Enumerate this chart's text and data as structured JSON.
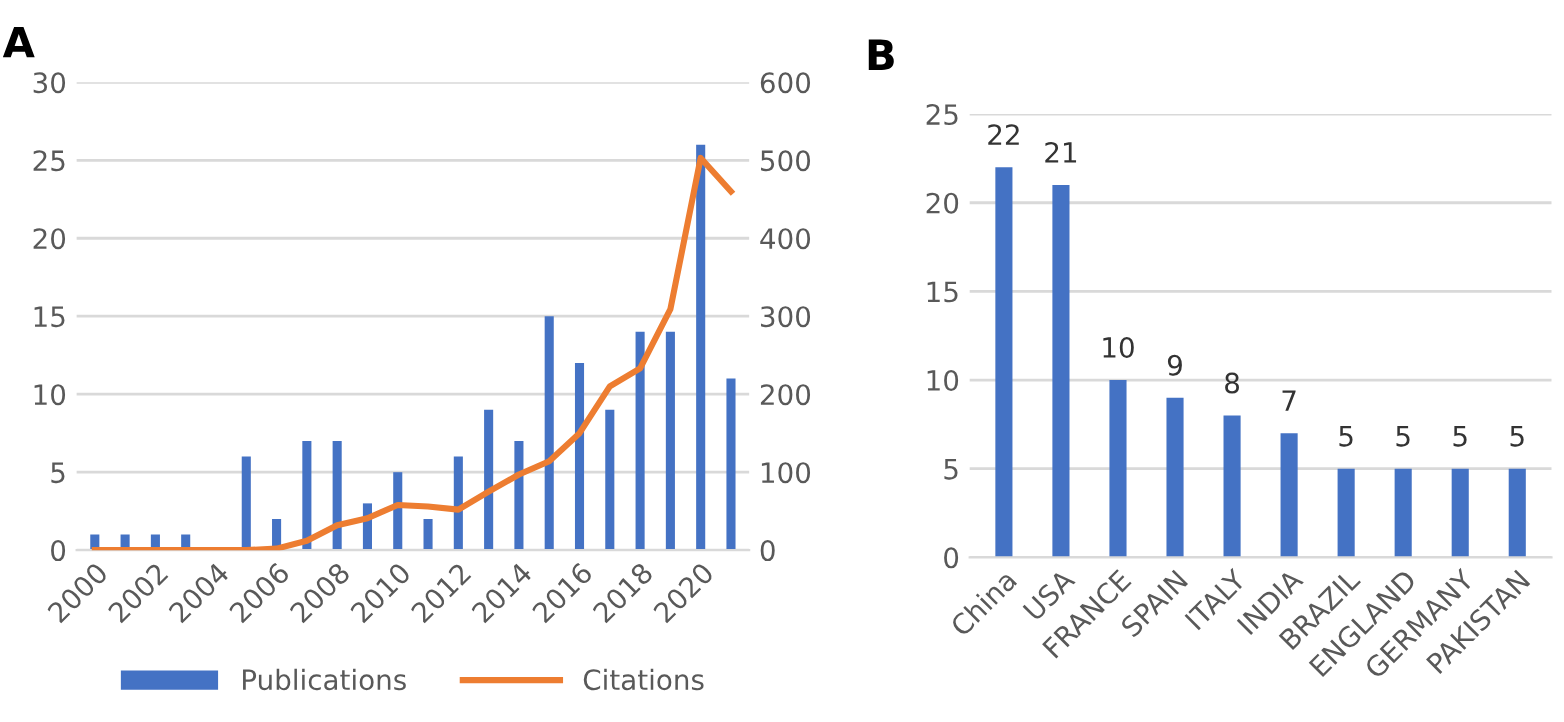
{
  "chart_data": [
    {
      "type": "bar",
      "title": "A",
      "categories": [
        "2000",
        null,
        "2002",
        null,
        "2004",
        null,
        "2006",
        null,
        "2008",
        null,
        "2010",
        null,
        "2012",
        null,
        "2014",
        null,
        "2016",
        null,
        "2018",
        null,
        "2020",
        null
      ],
      "series": [
        {
          "name": "Publications",
          "color": "#4472c4",
          "values": [
            1,
            1,
            1,
            1,
            0,
            6,
            2,
            7,
            7,
            3,
            5,
            2,
            6,
            9,
            7,
            15,
            12,
            9,
            14,
            14,
            26,
            11
          ]
        },
        {
          "name": "Citations",
          "type": "line",
          "axis": "y2",
          "color": "#ed7d31",
          "values": [
            0,
            0,
            0,
            0,
            0,
            0,
            2,
            12,
            32,
            41,
            58,
            56,
            52,
            75,
            97,
            114,
            150,
            210,
            233,
            309,
            503,
            460
          ]
        }
      ],
      "ylim": [
        0,
        30
      ],
      "yticks": [
        0,
        5,
        10,
        15,
        20,
        25,
        30
      ],
      "y2lim": [
        0,
        600
      ],
      "y2ticks": [
        0,
        100,
        200,
        300,
        400,
        500,
        600
      ],
      "grid": "y",
      "legend": "bottom"
    },
    {
      "type": "bar",
      "title": "B",
      "categories": [
        "China",
        "USA",
        "FRANCE",
        "SPAIN",
        "ITALY",
        "INDIA",
        "BRAZIL",
        "ENGLAND",
        "GERMANY",
        "PAKISTAN"
      ],
      "series": [
        {
          "color": "#4472c4",
          "values": [
            22,
            21,
            10,
            9,
            8,
            7,
            5,
            5,
            5,
            5
          ]
        }
      ],
      "ylim": [
        0,
        25
      ],
      "yticks": [
        0,
        5,
        10,
        15,
        20,
        25
      ],
      "grid": "y",
      "data_labels": true
    }
  ]
}
